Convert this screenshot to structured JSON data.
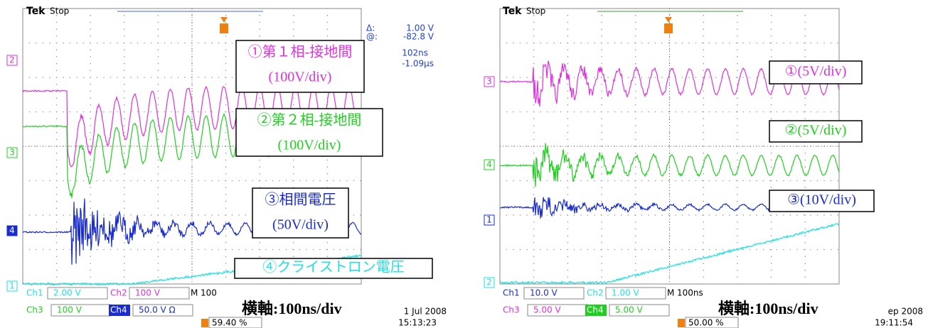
{
  "panels": [
    {
      "brand": "Tek",
      "state": "Stop",
      "cursor_readout": [
        "Δ:",
        "1.00 V",
        "@:",
        "-82.8 V",
        "102ns",
        "-1.09µs"
      ],
      "channel_markers": [
        "2",
        "3",
        "4",
        "1"
      ],
      "annotations": [
        [
          "①第１相-接地間",
          "(100V/div)"
        ],
        [
          "②第２相-接地間",
          "(100V/div)"
        ],
        [
          "③相間電圧",
          "(50V/div)"
        ],
        [
          "④クライストロン電圧"
        ]
      ],
      "settings": [
        [
          "Ch1",
          "2.00 V"
        ],
        [
          "Ch2",
          "100 V"
        ],
        [
          "M",
          "100"
        ],
        [
          "Ch3",
          "100 V"
        ],
        [
          "Ch4",
          "50.0 V Ω"
        ]
      ],
      "timebase": "横軸:100ns/div",
      "date": "1 Jul  2008",
      "time": "15:13:23",
      "trigger_pos": "59.40 %"
    },
    {
      "brand": "Tek",
      "state": "Stop",
      "cursor_readout": [],
      "channel_markers": [
        "3",
        "4",
        "1",
        "2"
      ],
      "annotations": [
        [
          "①(5V/div)"
        ],
        [
          "②(5V/div)"
        ],
        [
          "③(10V/div)"
        ]
      ],
      "settings": [
        [
          "Ch1",
          "10.0 V"
        ],
        [
          "Ch2",
          "1.00 V"
        ],
        [
          "M",
          "100ns"
        ],
        [
          "Ch3",
          "5.00 V"
        ],
        [
          "Ch4",
          "5.00 V"
        ]
      ],
      "timebase": "横軸:100ns/div",
      "date": "ep  2008",
      "time": "19:11:54",
      "trigger_pos": "50.00 %"
    }
  ]
}
